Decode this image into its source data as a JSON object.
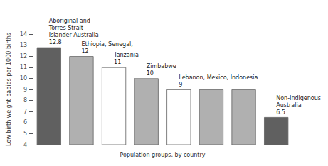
{
  "chart_data": {
    "type": "bar",
    "categories": [
      null,
      null,
      null,
      null,
      null,
      null,
      null,
      null
    ],
    "values": [
      12.8,
      12,
      11,
      10,
      9,
      9,
      9,
      6.5
    ],
    "value_labels": [
      "Aboriginal and\nTorres Strait\nIslander Australia\n12.8",
      "Ethiopia, Senegal,\n12",
      "Tanzania\n11",
      "Zimbabwe\n10",
      "Lebanon, Mexico, Indonesia\n9",
      null,
      null,
      "Non-Indigenous\nAustralia\n6.5"
    ],
    "colors": [
      "#606060",
      "#b0b0b0",
      "#ffffff",
      "#b0b0b0",
      "#ffffff",
      "#b0b0b0",
      "#b0b0b0",
      "#606060"
    ],
    "ylabel": "Low birth weight babies per 1000 births",
    "xlabel": "Population groups, by country",
    "ylim": [
      4,
      14
    ],
    "yticks": [
      4,
      5,
      6,
      7,
      8,
      9,
      10,
      11,
      12,
      13,
      14
    ],
    "grid": false,
    "tick_labels": "y"
  }
}
